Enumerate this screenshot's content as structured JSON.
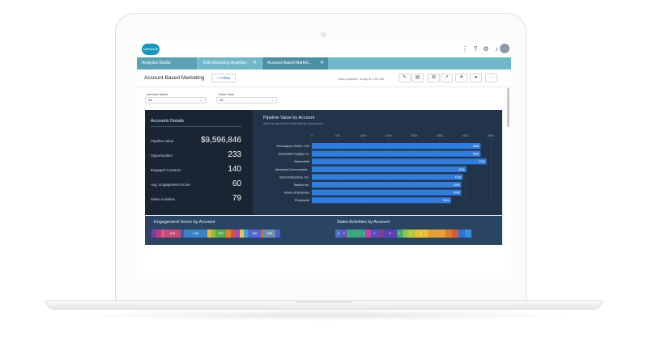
{
  "app": {
    "logo_text": "salesforce",
    "tabs": [
      {
        "label": "Analytics Studio"
      },
      {
        "label": "B2B Marketing Analytics"
      },
      {
        "label": "Account-Based Market..."
      }
    ],
    "close_glyph": "✕",
    "top_icons": [
      "grid-icon",
      "help-icon",
      "gear-icon",
      "bell-icon"
    ]
  },
  "header": {
    "title": "Account-Based Marketing",
    "follow_label": "+ Follow",
    "updated": "Data updated: Today at 2:00 AM",
    "action_icons": [
      "pencil-icon",
      "save-icon",
      "cart-icon",
      "share-icon",
      "notify-icon",
      "chat-icon",
      "more-icon"
    ]
  },
  "filters": [
    {
      "label": "Account Name",
      "value": "All"
    },
    {
      "label": "Close Date",
      "value": "All"
    }
  ],
  "accounts_details": {
    "title": "Accounts Details",
    "rows": [
      {
        "label": "Pipeline Value",
        "value": "$9,596,846"
      },
      {
        "label": "Opportunities",
        "value": "233"
      },
      {
        "label": "Engaged Contacts",
        "value": "140"
      },
      {
        "label": "Avg. Engagement Score",
        "value": "60"
      },
      {
        "label": "Sales Activities",
        "value": "79"
      }
    ]
  },
  "chart_data": {
    "type": "bar",
    "orientation": "horizontal",
    "title": "Pipeline Value by Account",
    "subtitle": "Select an account to break data by that account.",
    "x_ticks": [
      "0",
      "70k",
      "140k",
      "210k",
      "280k",
      "350k",
      "420k",
      "490k"
    ],
    "xlim": [
      0,
      490000
    ],
    "categories": [
      "Permadyne GmbH, LTD",
      "Associated Supply Co.",
      "UlyssesNet",
      "Advanced Communicat...",
      "Vand Enterprises, Inc.",
      "Tossion Inc.",
      "Haven Enterprises",
      "Employnet"
    ],
    "values": [
      462000,
      462000,
      478000,
      423000,
      413000,
      409000,
      409000,
      381000
    ],
    "value_labels": [
      "462k",
      "462k",
      "478k",
      "423k",
      "413k",
      "409k",
      "409k",
      "381k"
    ],
    "bar_color": "#2f7de1"
  },
  "engagement": {
    "title": "Engagement Score by Account",
    "segments": [
      {
        "text": "",
        "color": "#7b3fa0",
        "w": 6
      },
      {
        "text": "",
        "color": "#c23a8e",
        "w": 6
      },
      {
        "text": "",
        "color": "#e05b6f",
        "w": 4
      },
      {
        "text": "674",
        "color": "#c94a7a",
        "w": 20
      },
      {
        "text": "",
        "color": "#3d5b99",
        "w": 4
      },
      {
        "text": "1.3k",
        "color": "#3b82c4",
        "w": 29
      },
      {
        "text": "",
        "color": "#e8b63a",
        "w": 5
      },
      {
        "text": "",
        "color": "#8bbf3c",
        "w": 5
      },
      {
        "text": "532",
        "color": "#59a84a",
        "w": 13
      },
      {
        "text": "",
        "color": "#e67e22",
        "w": 6
      },
      {
        "text": "",
        "color": "#d94f4f",
        "w": 6
      },
      {
        "text": "",
        "color": "#a24ac0",
        "w": 5
      },
      {
        "text": "",
        "color": "#e8c547",
        "w": 5
      },
      {
        "text": "",
        "color": "#3da6c8",
        "w": 5
      },
      {
        "text": "766",
        "color": "#5467d6",
        "w": 16
      },
      {
        "text": "",
        "color": "#d16a3d",
        "w": 4
      },
      {
        "text": "658",
        "color": "#6a8fb0",
        "w": 14
      },
      {
        "text": "",
        "color": "#4a5fc1",
        "w": 6
      }
    ]
  },
  "sales_activities": {
    "title": "Sales Activities by Account",
    "segments": [
      {
        "text": "1",
        "color": "#4a6fd1",
        "w": 7
      },
      {
        "text": "4",
        "color": "#6a4fc0",
        "w": 7
      },
      {
        "text": "",
        "color": "#3da67a",
        "w": 18
      },
      {
        "text": "1",
        "color": "#2f9e8f",
        "w": 6
      },
      {
        "text": "",
        "color": "#c13fa6",
        "w": 6
      },
      {
        "text": "1",
        "color": "#5a4fc8",
        "w": 8
      },
      {
        "text": "",
        "color": "#7b3fa0",
        "w": 7
      },
      {
        "text": "3",
        "color": "#5b3fb8",
        "w": 17
      },
      {
        "text": "1",
        "color": "#3ea865",
        "w": 7
      },
      {
        "text": "",
        "color": "#8bc34a",
        "w": 6
      },
      {
        "text": "1",
        "color": "#b6c93a",
        "w": 9
      },
      {
        "text": "2",
        "color": "#e8c030",
        "w": 16
      },
      {
        "text": "",
        "color": "#e8a030",
        "w": 22
      },
      {
        "text": "",
        "color": "#e07b2a",
        "w": 8
      },
      {
        "text": "",
        "color": "#d55a3a",
        "w": 8
      },
      {
        "text": "",
        "color": "#2a74d6",
        "w": 8
      },
      {
        "text": "",
        "color": "#3a8ee0",
        "w": 8
      }
    ]
  }
}
